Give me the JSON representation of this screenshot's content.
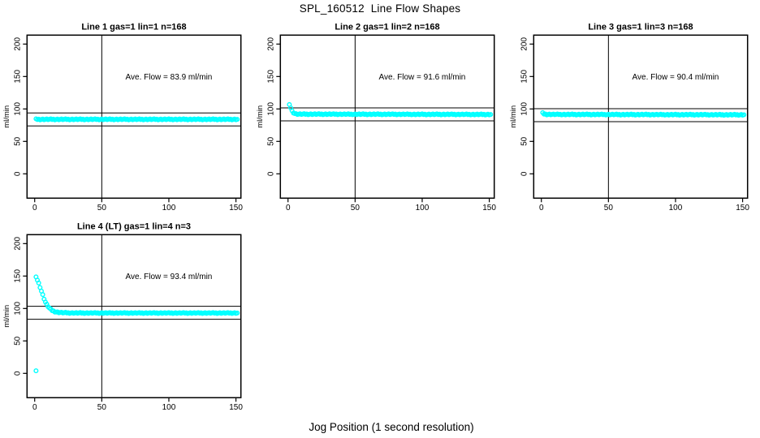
{
  "figure": {
    "title": "SPL_160512  Line Flow Shapes",
    "xlabel": "Jog Position (1 second resolution)",
    "background": "#ffffff",
    "axis_color": "#000000",
    "point_color": "#00ffff"
  },
  "chart_data": [
    {
      "type": "scatter",
      "title": "Line 1 gas=1 lin=1 n=168",
      "line": 1,
      "gas": 1,
      "lin": 1,
      "n": 168,
      "ave_flow": 83.9,
      "ave_flow_label": "Ave. Flow =  83.9  ml/min",
      "ylabel": "ml/min",
      "xticks": [
        0,
        50,
        100,
        150
      ],
      "yticks": [
        0,
        50,
        100,
        150,
        200
      ],
      "xlim": [
        -5.7,
        153.7
      ],
      "ylim": [
        -37.5,
        213.8
      ],
      "vline_x": 50,
      "hlines": [
        93.9,
        73.9
      ],
      "x_step": 1,
      "series": [
        {
          "name": "flow",
          "anchors": [
            [
              1,
              84
            ],
            [
              151,
              84
            ]
          ]
        }
      ],
      "extra_points": [],
      "annotation_pos": {
        "x": 100,
        "y": 150
      },
      "grid": false,
      "marker": "open-circle"
    },
    {
      "type": "scatter",
      "title": "Line 2 gas=1 lin=2 n=168",
      "line": 2,
      "gas": 1,
      "lin": 2,
      "n": 168,
      "ave_flow": 91.6,
      "ave_flow_label": "Ave. Flow =  91.6  ml/min",
      "ylabel": "ml/min",
      "xticks": [
        0,
        50,
        100,
        150
      ],
      "yticks": [
        0,
        50,
        100,
        150,
        200
      ],
      "xlim": [
        -5.7,
        153.7
      ],
      "ylim": [
        -37.5,
        213.8
      ],
      "vline_x": 50,
      "hlines": [
        101.6,
        81.6
      ],
      "x_step": 1,
      "series": [
        {
          "name": "flow",
          "anchors": [
            [
              1,
              106
            ],
            [
              2,
              102
            ],
            [
              3,
              97
            ],
            [
              4,
              94.5
            ],
            [
              5,
              93
            ],
            [
              6,
              92.3
            ],
            [
              8,
              92
            ],
            [
              151,
              91.5
            ]
          ]
        }
      ],
      "extra_points": [],
      "annotation_pos": {
        "x": 100,
        "y": 150
      },
      "grid": false,
      "marker": "open-circle"
    },
    {
      "type": "scatter",
      "title": "Line 3 gas=1 lin=3 n=168",
      "line": 3,
      "gas": 1,
      "lin": 3,
      "n": 168,
      "ave_flow": 90.4,
      "ave_flow_label": "Ave. Flow =  90.4  ml/min",
      "ylabel": "ml/min",
      "xticks": [
        0,
        50,
        100,
        150
      ],
      "yticks": [
        0,
        50,
        100,
        150,
        200
      ],
      "xlim": [
        -5.7,
        153.7
      ],
      "ylim": [
        -37.5,
        213.8
      ],
      "vline_x": 50,
      "hlines": [
        100.4,
        80.4
      ],
      "x_step": 1,
      "series": [
        {
          "name": "flow",
          "anchors": [
            [
              1,
              93.5
            ],
            [
              2,
              92.3
            ],
            [
              4,
              91.6
            ],
            [
              151,
              91
            ]
          ]
        }
      ],
      "extra_points": [],
      "annotation_pos": {
        "x": 100,
        "y": 150
      },
      "grid": false,
      "marker": "open-circle"
    },
    {
      "type": "scatter",
      "title": "Line 4 (LT) gas=1 lin=4 n=3",
      "line": 4,
      "gas": 1,
      "lin": 4,
      "n": 3,
      "ave_flow": 93.4,
      "ave_flow_label": "Ave. Flow =  93.4  ml/min",
      "ylabel": "ml/min",
      "xticks": [
        0,
        50,
        100,
        150
      ],
      "yticks": [
        0,
        50,
        100,
        150,
        200
      ],
      "xlim": [
        -5.7,
        153.7
      ],
      "ylim": [
        -37.5,
        213.8
      ],
      "vline_x": 50,
      "hlines": [
        103.4,
        83.4
      ],
      "x_step": 1,
      "series": [
        {
          "name": "flow",
          "anchors": [
            [
              1,
              148
            ],
            [
              2,
              144
            ],
            [
              3,
              139
            ],
            [
              4,
              133
            ],
            [
              5,
              127
            ],
            [
              6,
              121
            ],
            [
              7,
              115
            ],
            [
              8,
              110
            ],
            [
              9,
              106
            ],
            [
              10,
              103
            ],
            [
              11,
              100.5
            ],
            [
              12,
              98.5
            ],
            [
              13,
              97
            ],
            [
              14,
              96
            ],
            [
              15,
              95.2
            ],
            [
              16,
              94.6
            ],
            [
              18,
              94
            ],
            [
              20,
              93.6
            ],
            [
              25,
              93.2
            ],
            [
              35,
              93
            ],
            [
              151,
              93
            ]
          ]
        }
      ],
      "extra_points": [
        [
          1,
          4
        ]
      ],
      "annotation_pos": {
        "x": 100,
        "y": 150
      },
      "grid": false,
      "marker": "open-circle"
    }
  ]
}
